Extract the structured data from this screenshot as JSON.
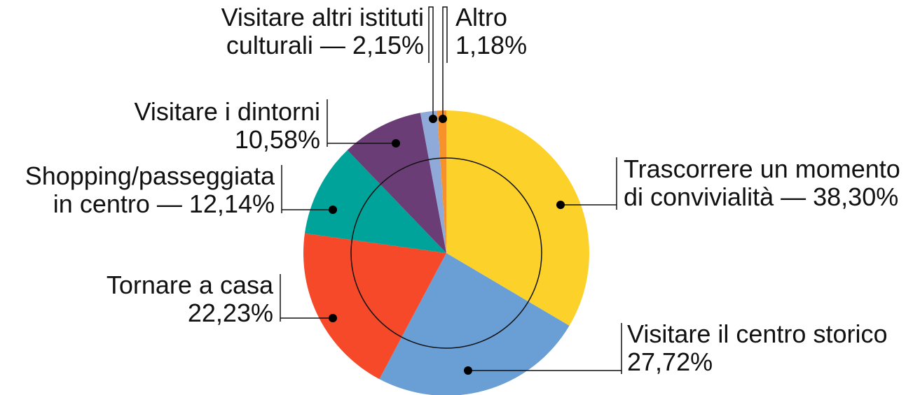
{
  "chart_data": {
    "type": "pie",
    "categories": [
      "Trascorrere un momento di convivialità",
      "Visitare il centro storico",
      "Tornare a casa",
      "Shopping/passeggiata in centro",
      "Visitare i dintorni",
      "Visitare altri istituti culturali",
      "Altro"
    ],
    "values": [
      38.3,
      27.72,
      22.23,
      12.14,
      10.58,
      2.15,
      1.18
    ],
    "value_labels": [
      "— 38,30%",
      "27,72%",
      "22,23%",
      "— 12,14%",
      "10,58%",
      "— 2,15%",
      "1,18%"
    ],
    "colors": [
      "#fcd22a",
      "#6a9fd6",
      "#f5492a",
      "#00a39a",
      "#6b3d76",
      "#8faad8",
      "#f7922a"
    ]
  }
}
